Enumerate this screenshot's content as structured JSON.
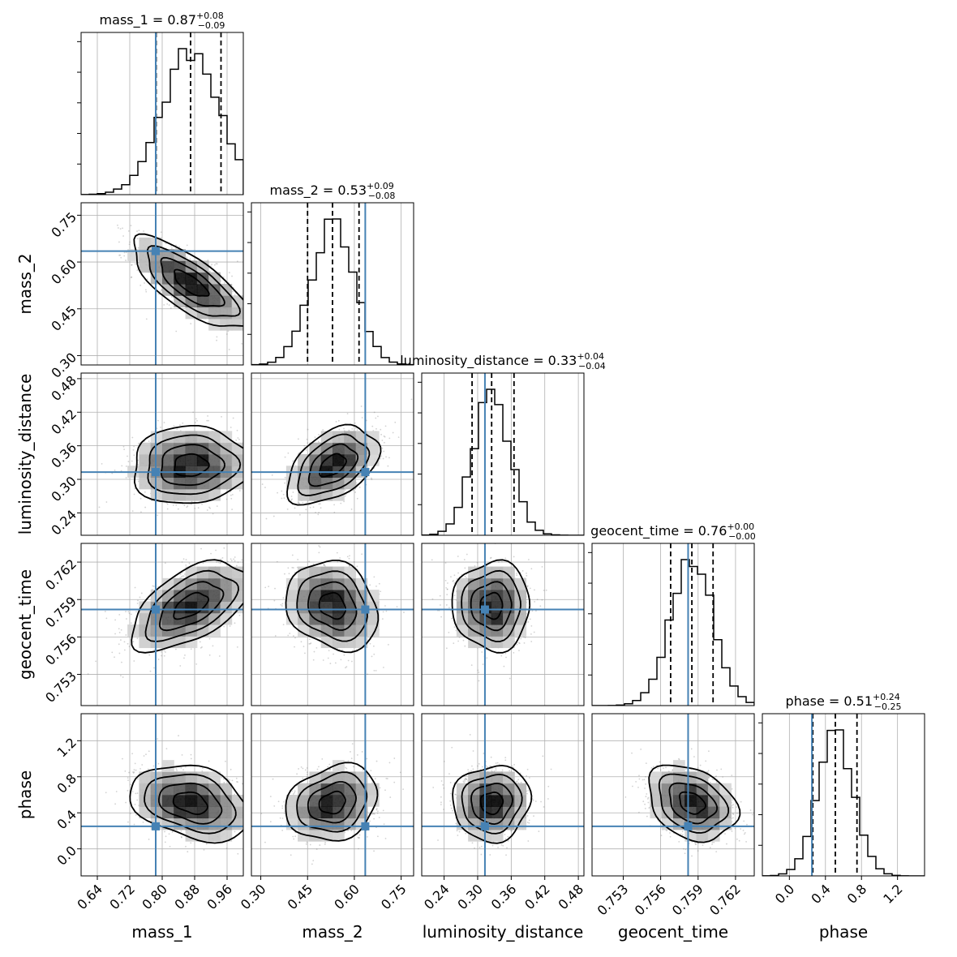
{
  "chart_data": {
    "type": "corner",
    "parameters": [
      "mass_1",
      "mass_2",
      "luminosity_distance",
      "geocent_time",
      "phase"
    ],
    "axis_labels": [
      "mass_1",
      "mass_2",
      "luminosity_distance",
      "geocent_time",
      "phase"
    ],
    "ranges": [
      [
        0.6,
        1.0
      ],
      [
        0.27,
        0.79
      ],
      [
        0.2,
        0.49
      ],
      [
        0.7505,
        0.7635
      ],
      [
        -0.3,
        1.5
      ]
    ],
    "ticks": [
      [
        0.64,
        0.72,
        0.8,
        0.88,
        0.96
      ],
      [
        0.3,
        0.45,
        0.6,
        0.75
      ],
      [
        0.24,
        0.3,
        0.36,
        0.42,
        0.48
      ],
      [
        0.753,
        0.756,
        0.759,
        0.762
      ],
      [
        0.0,
        0.4,
        0.8,
        1.2
      ]
    ],
    "tick_labels": [
      [
        "0.64",
        "0.72",
        "0.80",
        "0.88",
        "0.96"
      ],
      [
        "0.30",
        "0.45",
        "0.60",
        "0.75"
      ],
      [
        "0.24",
        "0.30",
        "0.36",
        "0.42",
        "0.48"
      ],
      [
        "0.753",
        "0.756",
        "0.759",
        "0.762"
      ],
      [
        "0.0",
        "0.4",
        "0.8",
        "1.2"
      ]
    ],
    "titles": [
      {
        "name": "mass_1",
        "median": "0.87",
        "plus": "+0.08",
        "minus": "−0.09"
      },
      {
        "name": "mass_2",
        "median": "0.53",
        "plus": "+0.09",
        "minus": "−0.08"
      },
      {
        "name": "luminosity_distance",
        "median": "0.33",
        "plus": "+0.04",
        "minus": "−0.04"
      },
      {
        "name": "geocent_time",
        "median": "0.76",
        "plus": "+0.00",
        "minus": "−0.00"
      },
      {
        "name": "phase",
        "median": "0.51",
        "plus": "+0.24",
        "minus": "−0.25"
      }
    ],
    "truths": [
      0.784,
      0.635,
      0.313,
      0.7582,
      0.25
    ],
    "means": [
      0.87,
      0.53,
      0.325,
      0.7585,
      0.51
    ],
    "sigmas": [
      0.07,
      0.07,
      0.033,
      0.0017,
      0.2
    ],
    "quantiles": [
      [
        0.785,
        0.87,
        0.945
      ],
      [
        0.45,
        0.53,
        0.615
      ],
      [
        0.29,
        0.325,
        0.365
      ],
      [
        0.7568,
        0.7585,
        0.7602
      ],
      [
        0.26,
        0.51,
        0.75
      ]
    ],
    "correlations": [
      [
        1,
        -0.75,
        0.05,
        0.55,
        -0.3
      ],
      [
        -0.75,
        1,
        0.45,
        -0.2,
        0.2
      ],
      [
        0.05,
        0.45,
        1,
        0.0,
        0.05
      ],
      [
        0.55,
        -0.2,
        0.0,
        1,
        -0.3
      ],
      [
        -0.3,
        0.2,
        0.05,
        -0.3,
        1
      ]
    ],
    "grid": true,
    "colors": {
      "truth": "#4682b4",
      "contour": "#000000",
      "hist": "#000000",
      "grid": "#b0b0b0",
      "points": "#7f7f7f"
    }
  }
}
